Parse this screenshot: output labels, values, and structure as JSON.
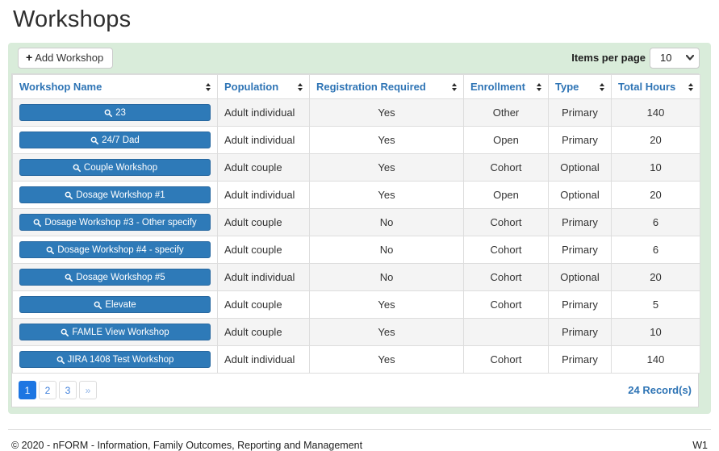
{
  "page": {
    "title": "Workshops"
  },
  "toolbar": {
    "add_button_label": "Add Workshop",
    "items_per_page_label": "Items per page",
    "items_per_page_value": "10"
  },
  "table": {
    "columns": [
      "Workshop Name",
      "Population",
      "Registration Required",
      "Enrollment",
      "Type",
      "Total Hours"
    ],
    "rows": [
      {
        "name": "23",
        "population": "Adult individual",
        "registration_required": "Yes",
        "enrollment": "Other",
        "type": "Primary",
        "total_hours": "140"
      },
      {
        "name": "24/7 Dad",
        "population": "Adult individual",
        "registration_required": "Yes",
        "enrollment": "Open",
        "type": "Primary",
        "total_hours": "20"
      },
      {
        "name": "Couple Workshop",
        "population": "Adult couple",
        "registration_required": "Yes",
        "enrollment": "Cohort",
        "type": "Optional",
        "total_hours": "10"
      },
      {
        "name": "Dosage Workshop #1",
        "population": "Adult individual",
        "registration_required": "Yes",
        "enrollment": "Open",
        "type": "Optional",
        "total_hours": "20"
      },
      {
        "name": "Dosage Workshop #3 - Other specify",
        "population": "Adult couple",
        "registration_required": "No",
        "enrollment": "Cohort",
        "type": "Primary",
        "total_hours": "6"
      },
      {
        "name": "Dosage Workshop #4 - specify",
        "population": "Adult couple",
        "registration_required": "No",
        "enrollment": "Cohort",
        "type": "Primary",
        "total_hours": "6"
      },
      {
        "name": "Dosage Workshop #5",
        "population": "Adult individual",
        "registration_required": "No",
        "enrollment": "Cohort",
        "type": "Optional",
        "total_hours": "20"
      },
      {
        "name": "Elevate",
        "population": "Adult couple",
        "registration_required": "Yes",
        "enrollment": "Cohort",
        "type": "Primary",
        "total_hours": "5"
      },
      {
        "name": "FAMLE View Workshop",
        "population": "Adult couple",
        "registration_required": "Yes",
        "enrollment": "",
        "type": "Primary",
        "total_hours": "10"
      },
      {
        "name": "JIRA 1408 Test Workshop",
        "population": "Adult individual",
        "registration_required": "Yes",
        "enrollment": "Cohort",
        "type": "Primary",
        "total_hours": "140"
      }
    ]
  },
  "pagination": {
    "pages": [
      "1",
      "2",
      "3"
    ],
    "active_page": "1",
    "next_label": "»",
    "records_label": "24 Record(s)"
  },
  "footer": {
    "copyright": "© 2020 - nFORM - Information, Family Outcomes, Reporting and Management",
    "version": "W1"
  },
  "icons": {
    "add": "plus-icon",
    "workshop_button": "search-icon",
    "column_sort": "sort-arrows-icon",
    "items_per_page": "chevron-down-icon"
  },
  "colors": {
    "panel_green": "#d9ecda",
    "header_blue": "#2e74b5",
    "button_blue": "#2e7ab8",
    "pagination_active_blue": "#1d76e2",
    "stripe_gray": "#f4f4f4",
    "border_gray": "#dddddd"
  }
}
